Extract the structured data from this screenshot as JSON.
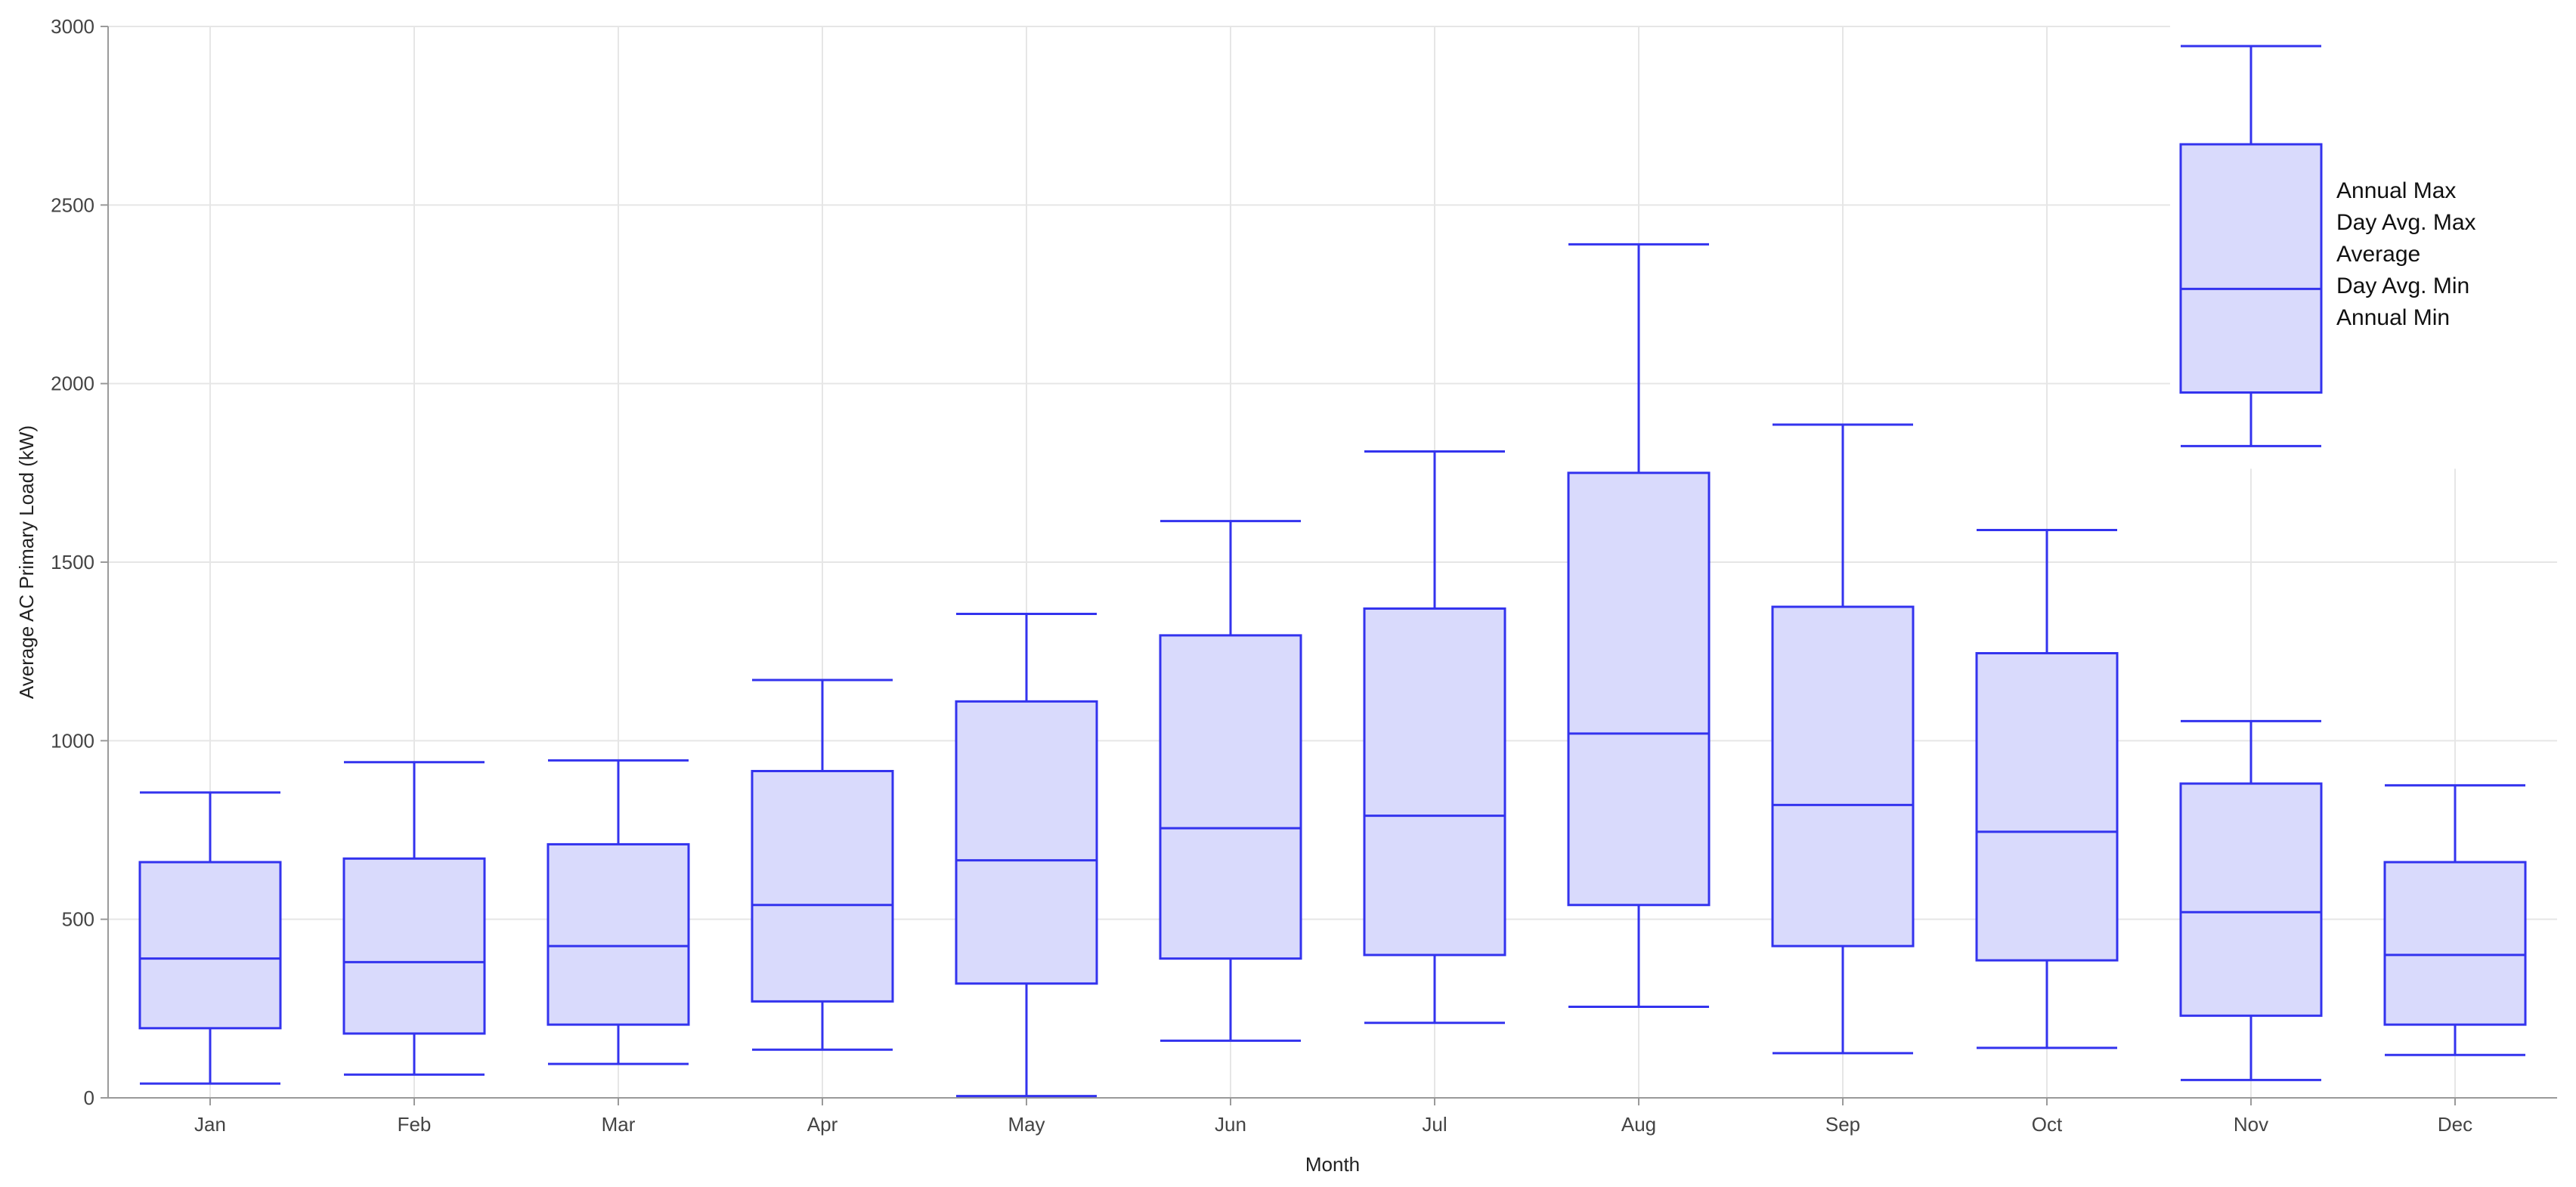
{
  "chart_data": {
    "type": "box",
    "xlabel": "Month",
    "ylabel": "Average AC Primary Load (kW)",
    "ylim": [
      0,
      3000
    ],
    "yticks": [
      "0",
      "500",
      "1000",
      "1500",
      "2000",
      "2500",
      "3000"
    ],
    "grid": true,
    "colors": {
      "box_fill": "#d9dafc",
      "box_stroke": "#3333ee"
    },
    "categories": [
      "Jan",
      "Feb",
      "Mar",
      "Apr",
      "May",
      "Jun",
      "Jul",
      "Aug",
      "Sep",
      "Oct",
      "Nov",
      "Dec"
    ],
    "boxes": [
      {
        "category": "Jan",
        "annual_min": 40,
        "day_avg_min": 195,
        "average": 390,
        "day_avg_max": 660,
        "annual_max": 855
      },
      {
        "category": "Feb",
        "annual_min": 65,
        "day_avg_min": 180,
        "average": 380,
        "day_avg_max": 670,
        "annual_max": 940
      },
      {
        "category": "Mar",
        "annual_min": 95,
        "day_avg_min": 205,
        "average": 425,
        "day_avg_max": 710,
        "annual_max": 945
      },
      {
        "category": "Apr",
        "annual_min": 135,
        "day_avg_min": 270,
        "average": 540,
        "day_avg_max": 915,
        "annual_max": 1170
      },
      {
        "category": "May",
        "annual_min": 5,
        "day_avg_min": 320,
        "average": 665,
        "day_avg_max": 1110,
        "annual_max": 1355
      },
      {
        "category": "Jun",
        "annual_min": 160,
        "day_avg_min": 390,
        "average": 755,
        "day_avg_max": 1295,
        "annual_max": 1615
      },
      {
        "category": "Jul",
        "annual_min": 210,
        "day_avg_min": 400,
        "average": 790,
        "day_avg_max": 1370,
        "annual_max": 1810
      },
      {
        "category": "Aug",
        "annual_min": 255,
        "day_avg_min": 540,
        "average": 1020,
        "day_avg_max": 1750,
        "annual_max": 2390
      },
      {
        "category": "Sep",
        "annual_min": 125,
        "day_avg_min": 425,
        "average": 820,
        "day_avg_max": 1375,
        "annual_max": 1885
      },
      {
        "category": "Oct",
        "annual_min": 140,
        "day_avg_min": 385,
        "average": 745,
        "day_avg_max": 1245,
        "annual_max": 1590
      },
      {
        "category": "Nov",
        "annual_min": 50,
        "day_avg_min": 230,
        "average": 520,
        "day_avg_max": 880,
        "annual_max": 1055
      },
      {
        "category": "Dec",
        "annual_min": 120,
        "day_avg_min": 205,
        "average": 400,
        "day_avg_max": 660,
        "annual_max": 875
      }
    ],
    "legend": {
      "position": "top-right",
      "sample_box": {
        "annual_min": 1825,
        "day_avg_min": 1975,
        "average": 2265,
        "day_avg_max": 2670,
        "annual_max": 2945
      },
      "labels": [
        "Annual Max",
        "Day Avg. Max",
        "Average",
        "Day Avg. Min",
        "Annual Min"
      ]
    }
  }
}
